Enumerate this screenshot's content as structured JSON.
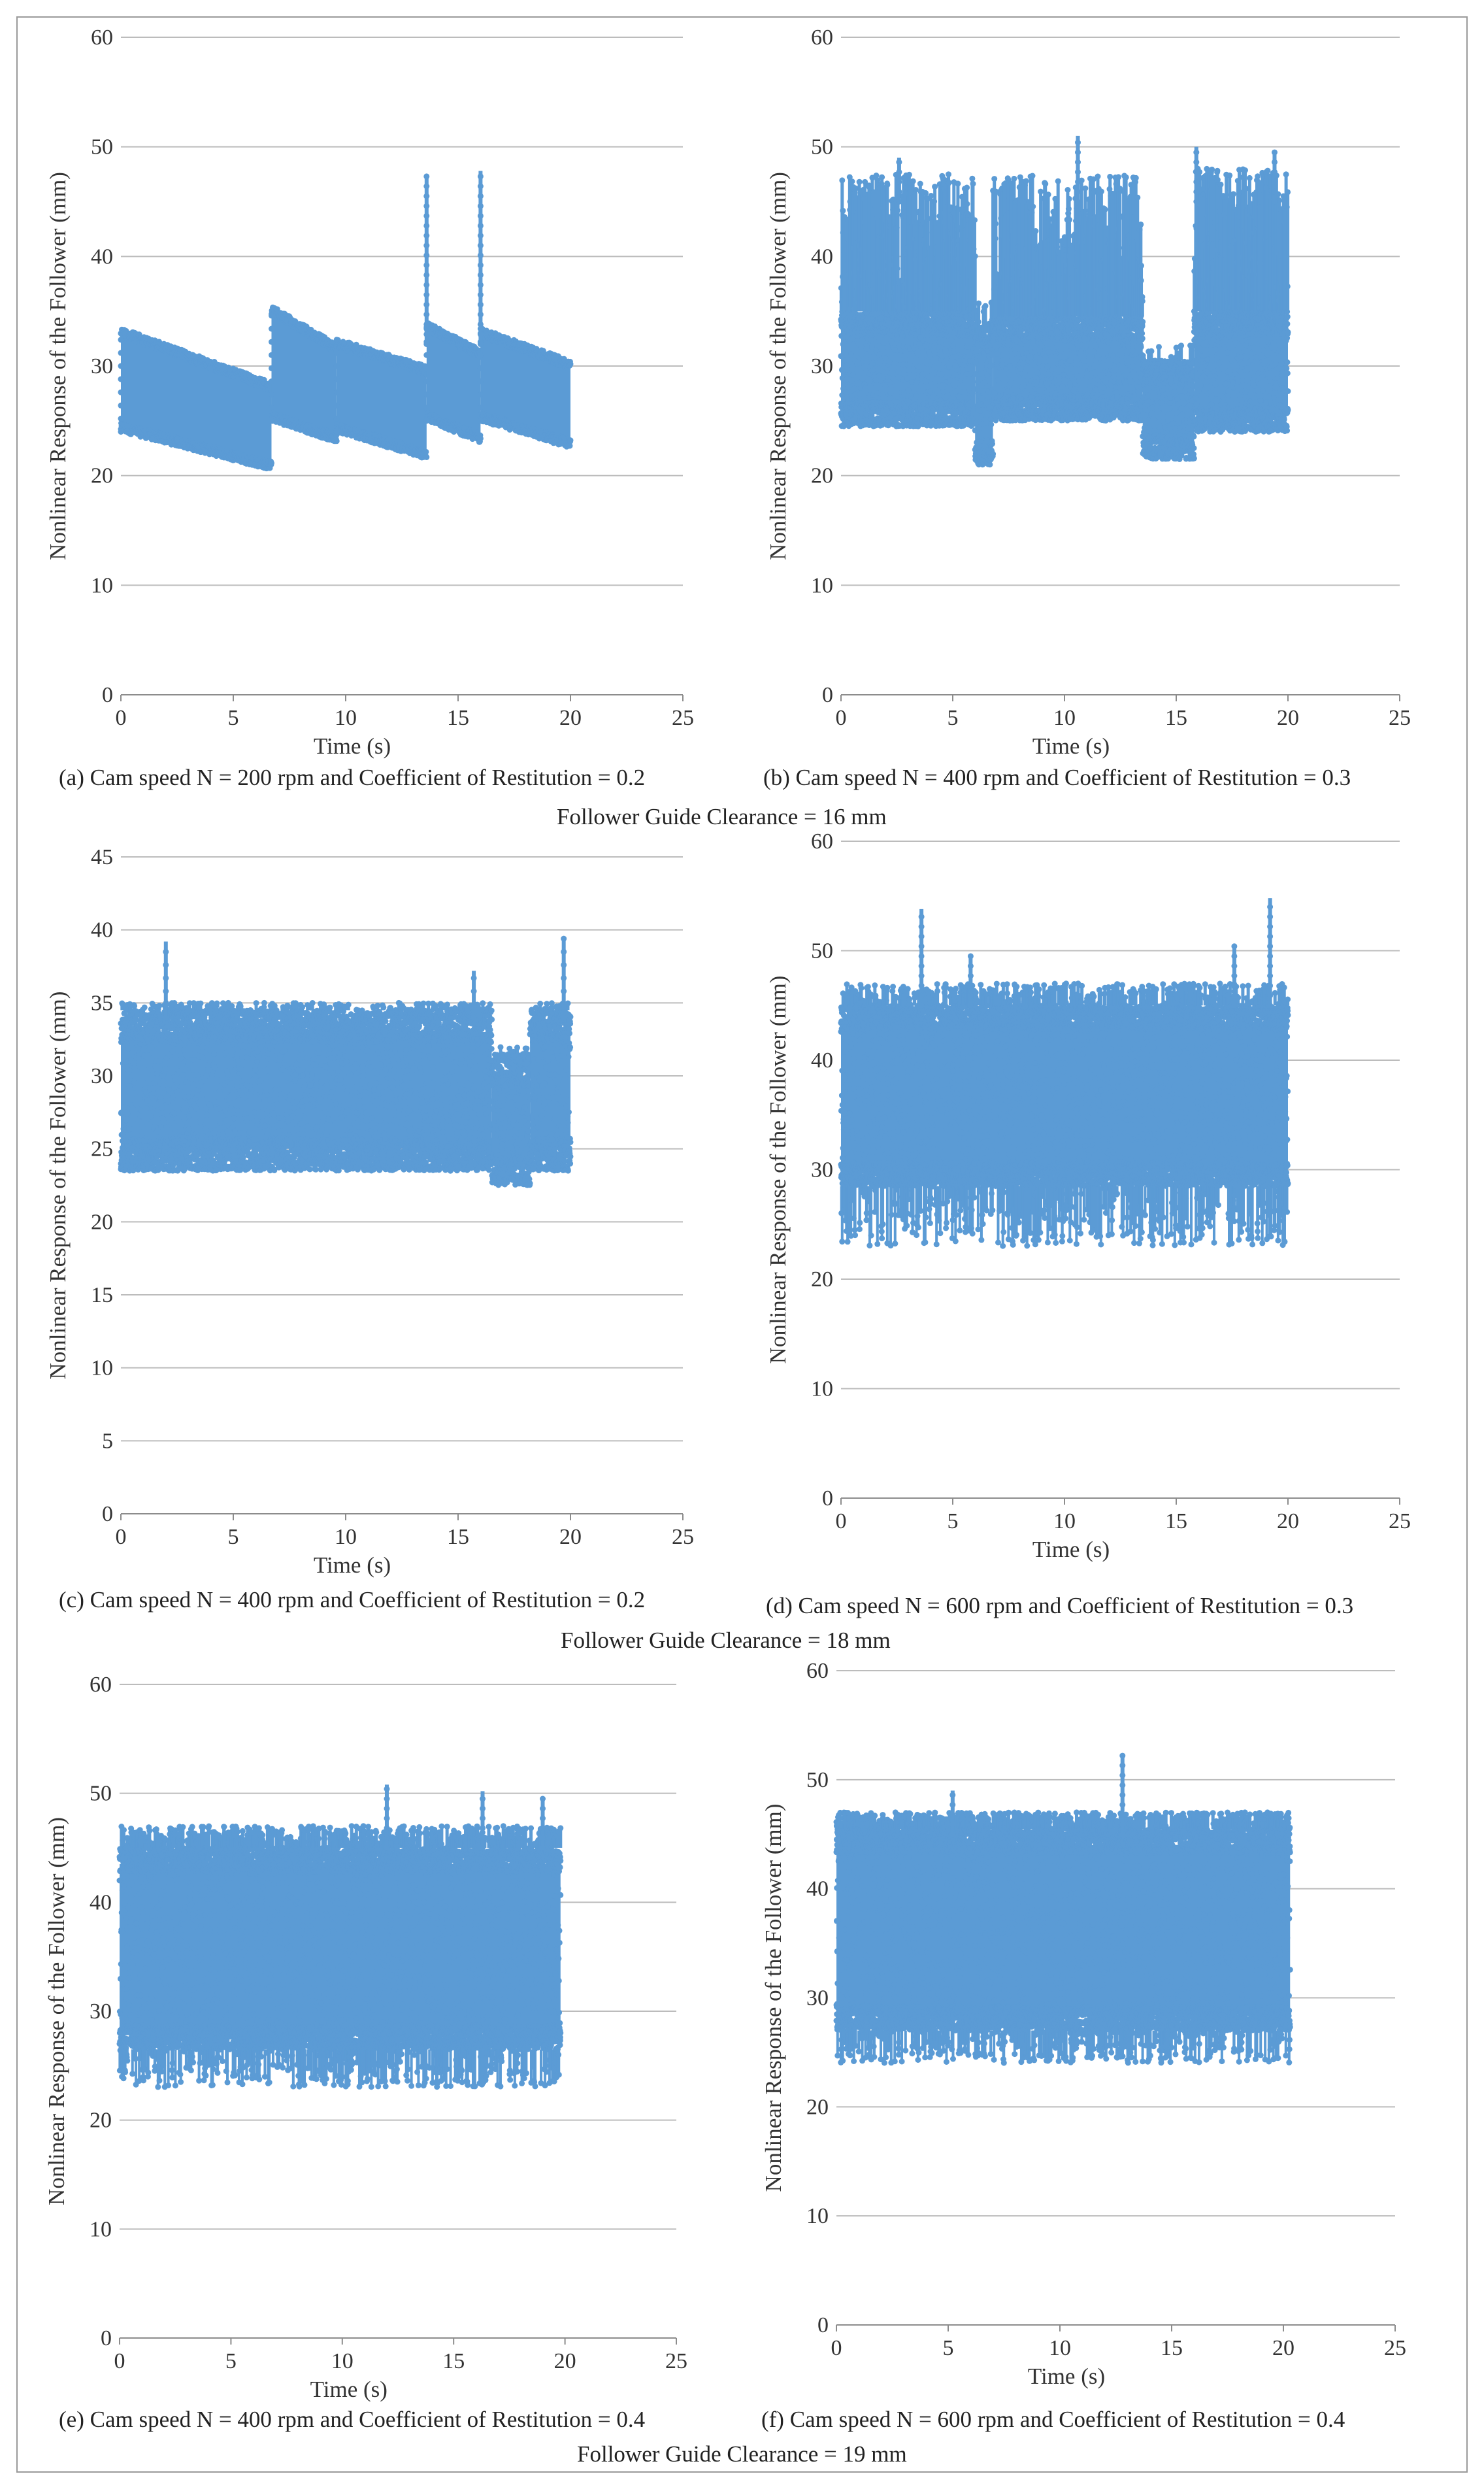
{
  "figure": {
    "sections": [
      {
        "caption": "Follower Guide Clearance = 16 mm"
      },
      {
        "caption": "Follower Guide Clearance = 18 mm"
      },
      {
        "caption": "Follower Guide Clearance = 19 mm"
      }
    ]
  },
  "colors": {
    "marker": "#5b9bd5",
    "grid": "#bcbcbc",
    "axis": "#8c8c8c",
    "text": "#333333"
  },
  "chart_data": [
    {
      "id": "a",
      "type": "scatter",
      "caption": "(a) Cam speed N = 200 rpm and Coefficient of Restitution = 0.2",
      "xlabel": "Time (s)",
      "ylabel": "Nonlinear Response of the Follower (mm)",
      "xlim": [
        0,
        25
      ],
      "ylim": [
        0,
        60
      ],
      "xticks": [
        0,
        5,
        10,
        15,
        20,
        25
      ],
      "yticks": [
        0,
        10,
        20,
        30,
        40,
        50,
        60
      ],
      "grid": "horizontal",
      "segments": [
        {
          "t": [
            0,
            6.7
          ],
          "upper": [
            33.5,
            28.5
          ],
          "lower": [
            24,
            20.5
          ]
        },
        {
          "t": [
            6.7,
            9.6
          ],
          "upper": [
            35.5,
            32
          ],
          "lower": [
            25,
            23
          ]
        },
        {
          "t": [
            9.6,
            13.6
          ],
          "upper": [
            32.5,
            30
          ],
          "lower": [
            24,
            21.5
          ]
        },
        {
          "t": [
            13.6,
            16
          ],
          "upper": [
            34,
            31.5
          ],
          "lower": [
            25,
            23
          ]
        },
        {
          "t": [
            16,
            20
          ],
          "upper": [
            33.5,
            30.5
          ],
          "lower": [
            25,
            22.5
          ]
        }
      ],
      "spikes": [
        {
          "t": 13.6,
          "from": 32,
          "to": 47.5
        },
        {
          "t": 16.0,
          "from": 32,
          "to": 47.8
        }
      ]
    },
    {
      "id": "b",
      "type": "scatter",
      "caption": "(b) Cam speed N = 400 rpm and Coefficient of Restitution = 0.3",
      "xlabel": "Time (s)",
      "ylabel": "Nonlinear Response of the Follower (mm)",
      "xlim": [
        0,
        25
      ],
      "ylim": [
        0,
        60
      ],
      "xticks": [
        0,
        5,
        10,
        15,
        20,
        25
      ],
      "yticks": [
        0,
        10,
        20,
        30,
        40,
        50,
        60
      ],
      "grid": "horizontal",
      "bands": [
        {
          "t": [
            0,
            6.0
          ],
          "core": [
            24.5,
            35
          ],
          "peak": 47.5,
          "peak_density": 0.55
        },
        {
          "t": [
            6.0,
            6.8
          ],
          "core": [
            21,
            33
          ],
          "peak": 36,
          "peak_density": 0.15
        },
        {
          "t": [
            6.8,
            13.5
          ],
          "core": [
            25,
            34.5
          ],
          "peak": 47.5,
          "peak_density": 0.45
        },
        {
          "t": [
            13.5,
            15.8
          ],
          "core": [
            21.5,
            30.5
          ],
          "peak": 32,
          "peak_density": 0.05
        },
        {
          "t": [
            15.8,
            20
          ],
          "core": [
            24,
            35
          ],
          "peak": 48,
          "peak_density": 0.55
        }
      ],
      "spikes": [
        {
          "t": 10.6,
          "from": 45,
          "to": 51
        },
        {
          "t": 15.9,
          "from": 45,
          "to": 50
        },
        {
          "t": 19.4,
          "from": 45,
          "to": 49.5
        },
        {
          "t": 2.6,
          "from": 45,
          "to": 49
        }
      ]
    },
    {
      "id": "c",
      "type": "scatter",
      "caption": "(c) Cam speed N = 400 rpm and Coefficient of Restitution = 0.2",
      "xlabel": "Time (s)",
      "ylabel": "Nonlinear Response of the Follower (mm)",
      "xlim": [
        0,
        25
      ],
      "ylim": [
        0,
        45
      ],
      "xticks": [
        0,
        5,
        10,
        15,
        20,
        25
      ],
      "yticks": [
        0,
        5,
        10,
        15,
        20,
        25,
        30,
        35,
        40,
        45
      ],
      "grid": "horizontal",
      "bands": [
        {
          "t": [
            0,
            16.5
          ],
          "core": [
            23.5,
            34.5
          ],
          "peak": 35,
          "peak_density": 0.1
        },
        {
          "t": [
            16.5,
            18.2
          ],
          "core": [
            22.5,
            31.5
          ],
          "peak": 32,
          "peak_density": 0.05
        },
        {
          "t": [
            18.2,
            20
          ],
          "core": [
            23.5,
            34.5
          ],
          "peak": 35,
          "peak_density": 0.1
        }
      ],
      "spikes": [
        {
          "t": 2.0,
          "from": 34,
          "to": 39.2
        },
        {
          "t": 15.7,
          "from": 34,
          "to": 37.2
        },
        {
          "t": 19.7,
          "from": 34,
          "to": 39.5
        }
      ]
    },
    {
      "id": "d",
      "type": "scatter",
      "caption": "(d) Cam speed N = 600 rpm and Coefficient of Restitution = 0.3",
      "xlabel": "Time (s)",
      "ylabel": "Nonlinear Response of the Follower (mm)",
      "xlim": [
        0,
        25
      ],
      "ylim": [
        0,
        60
      ],
      "xticks": [
        0,
        5,
        10,
        15,
        20,
        25
      ],
      "yticks": [
        0,
        10,
        20,
        30,
        40,
        50,
        60
      ],
      "grid": "horizontal",
      "bands": [
        {
          "t": [
            0,
            20
          ],
          "core": [
            28.5,
            45
          ],
          "peak": 47,
          "peak_density": 0.2,
          "tail_low": 23
        }
      ],
      "spikes": [
        {
          "t": 3.6,
          "from": 45,
          "to": 53.8
        },
        {
          "t": 19.2,
          "from": 45,
          "to": 54.8
        },
        {
          "t": 17.6,
          "from": 45,
          "to": 50.5
        },
        {
          "t": 5.8,
          "from": 45,
          "to": 49.5
        }
      ]
    },
    {
      "id": "e",
      "type": "scatter",
      "caption": "(e) Cam speed N = 400 rpm and Coefficient of Restitution = 0.4",
      "xlabel": "Time (s)",
      "ylabel": "Nonlinear Response of the Follower (mm)",
      "xlim": [
        0,
        25
      ],
      "ylim": [
        0,
        60
      ],
      "xticks": [
        0,
        5,
        10,
        15,
        20,
        25
      ],
      "yticks": [
        0,
        10,
        20,
        30,
        40,
        50,
        60
      ],
      "grid": "horizontal",
      "bands": [
        {
          "t": [
            0,
            19.8
          ],
          "core": [
            26.5,
            45
          ],
          "peak": 47,
          "peak_density": 0.25,
          "tail_low": 23
        }
      ],
      "spikes": [
        {
          "t": 12.0,
          "from": 45,
          "to": 50.8
        },
        {
          "t": 16.3,
          "from": 45,
          "to": 50.2
        },
        {
          "t": 19.0,
          "from": 45,
          "to": 49.5
        }
      ]
    },
    {
      "id": "f",
      "type": "scatter",
      "caption": "(f) Cam speed N = 600 rpm and Coefficient of Restitution = 0.4",
      "xlabel": "Time (s)",
      "ylabel": "Nonlinear Response of the Follower (mm)",
      "xlim": [
        0,
        25
      ],
      "ylim": [
        0,
        60
      ],
      "xticks": [
        0,
        5,
        10,
        15,
        20,
        25
      ],
      "yticks": [
        0,
        10,
        20,
        30,
        40,
        50,
        60
      ],
      "grid": "horizontal",
      "bands": [
        {
          "t": [
            0,
            20.3
          ],
          "core": [
            27,
            45.5
          ],
          "peak": 47,
          "peak_density": 0.3,
          "tail_low": 24
        }
      ],
      "spikes": [
        {
          "t": 12.8,
          "from": 45,
          "to": 52.2
        },
        {
          "t": 5.2,
          "from": 45,
          "to": 49
        }
      ]
    }
  ]
}
